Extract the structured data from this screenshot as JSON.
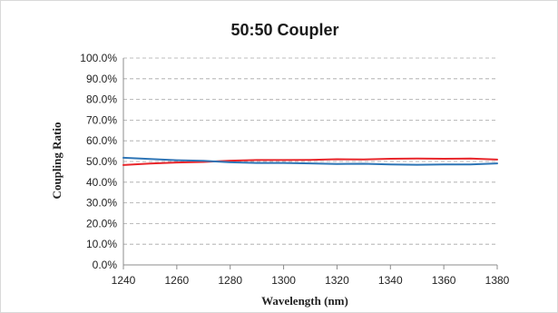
{
  "chart_data": {
    "type": "line",
    "title": "50:50 Coupler",
    "xlabel": "Wavelength (nm)",
    "ylabel": "Coupling Ratio",
    "xlim": [
      1240,
      1380
    ],
    "ylim": [
      0,
      100
    ],
    "x_ticks": [
      1240,
      1260,
      1280,
      1300,
      1320,
      1340,
      1360,
      1380
    ],
    "y_ticks": [
      0,
      10,
      20,
      30,
      40,
      50,
      60,
      70,
      80,
      90,
      100
    ],
    "x_tick_labels": [
      "1240",
      "1260",
      "1280",
      "1300",
      "1320",
      "1340",
      "1360",
      "1380"
    ],
    "y_tick_labels": [
      "0.0%",
      "10.0%",
      "20.0%",
      "30.0%",
      "40.0%",
      "50.0%",
      "60.0%",
      "70.0%",
      "80.0%",
      "90.0%",
      "100.0%"
    ],
    "grid": "horizontal dashed",
    "legend": "none",
    "series": [
      {
        "color": "#e8262b",
        "x": [
          1240,
          1250,
          1260,
          1270,
          1280,
          1290,
          1300,
          1310,
          1320,
          1330,
          1340,
          1350,
          1360,
          1370,
          1380
        ],
        "y": [
          48.3,
          49.0,
          49.5,
          49.8,
          50.4,
          50.7,
          50.7,
          50.8,
          51.1,
          51.0,
          51.3,
          51.4,
          51.3,
          51.4,
          50.9
        ]
      },
      {
        "color": "#2e75b6",
        "x": [
          1240,
          1250,
          1260,
          1270,
          1280,
          1290,
          1300,
          1310,
          1320,
          1330,
          1340,
          1350,
          1360,
          1370,
          1380
        ],
        "y": [
          51.8,
          51.2,
          50.6,
          50.3,
          49.6,
          49.3,
          49.3,
          49.1,
          48.8,
          48.9,
          48.6,
          48.4,
          48.6,
          48.6,
          49.1
        ]
      }
    ]
  }
}
